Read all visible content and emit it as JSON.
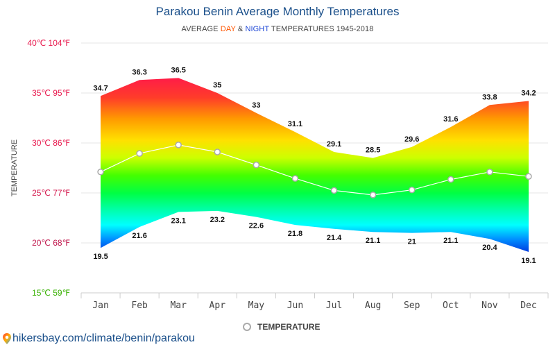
{
  "title": "Parakou Benin Average Monthly Temperatures",
  "subtitle": {
    "prefix": "AVERAGE ",
    "day": "DAY",
    "amp": " & ",
    "night": "NIGHT",
    "suffix": " TEMPERATURES 1945-2018"
  },
  "legend": {
    "label": "TEMPERATURE"
  },
  "footer": {
    "link_text": "hikersbay.com/climate/benin/parakou"
  },
  "colors": {
    "title": "#1a4f8a",
    "day_word": "#ff5500",
    "night_word": "#1e47d6",
    "tick_30_40": "#e8174c",
    "tick_25_35": "#e8174c",
    "tick_20_25": "#c0174c",
    "tick_15": "#37b000",
    "avg_line": "#ffffff",
    "marker_stroke": "#aaaaaa"
  },
  "chart_data": {
    "type": "area",
    "ylabel": "TEMPERATURE",
    "categories": [
      "Jan",
      "Feb",
      "Mar",
      "Apr",
      "May",
      "Jun",
      "Jul",
      "Aug",
      "Sep",
      "Oct",
      "Nov",
      "Dec"
    ],
    "yticks": [
      {
        "value": 40,
        "label": "40℃ 104℉",
        "color": "#e8174c"
      },
      {
        "value": 35,
        "label": "35℃ 95℉",
        "color": "#e8174c"
      },
      {
        "value": 30,
        "label": "30℃ 86℉",
        "color": "#e8174c"
      },
      {
        "value": 25,
        "label": "25℃ 77℉",
        "color": "#d4174c"
      },
      {
        "value": 20,
        "label": "20℃ 68℉",
        "color": "#c0174c"
      },
      {
        "value": 15,
        "label": "15℃ 59℉",
        "color": "#37b000"
      }
    ],
    "ylim": [
      15,
      40
    ],
    "series": [
      {
        "name": "DAY",
        "values": [
          34.7,
          36.3,
          36.5,
          35,
          33,
          31.1,
          29.1,
          28.5,
          29.6,
          31.6,
          33.8,
          34.2
        ]
      },
      {
        "name": "NIGHT",
        "values": [
          19.5,
          21.6,
          23.1,
          23.2,
          22.6,
          21.8,
          21.4,
          21.1,
          21,
          21.1,
          20.4,
          19.1
        ]
      },
      {
        "name": "TEMPERATURE",
        "values": [
          27.1,
          28.95,
          29.8,
          29.1,
          27.8,
          26.45,
          25.25,
          24.8,
          25.3,
          26.35,
          27.1,
          26.65
        ]
      }
    ],
    "day_labels": [
      "34.7",
      "36.3",
      "36.5",
      "35",
      "33",
      "31.1",
      "29.1",
      "28.5",
      "29.6",
      "31.6",
      "33.8",
      "34.2"
    ],
    "night_labels": [
      "19.5",
      "21.6",
      "23.1",
      "23.2",
      "22.6",
      "21.8",
      "21.4",
      "21.1",
      "21",
      "21.1",
      "20.4",
      "19.1"
    ],
    "grid": true,
    "legend_position": "bottom-center"
  }
}
